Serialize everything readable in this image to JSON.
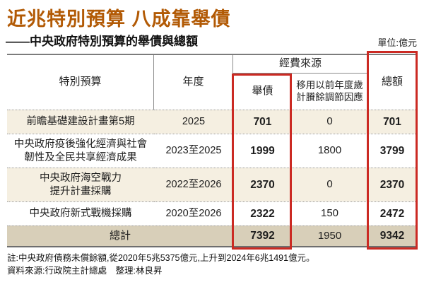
{
  "header": {
    "title": "近兆特別預算  八成靠舉債",
    "subtitle": "——中央政府特別預算的舉債與總額",
    "unit": "單位:億元"
  },
  "table": {
    "col_headers": {
      "budget": "特別預算",
      "year": "年度",
      "source_group": "經費來源",
      "debt": "舉債",
      "transfer": "移用以前年度歲\n計賸餘調節因應",
      "total": "總額"
    },
    "rows": [
      {
        "name": "前瞻基礎建設計畫第5期",
        "year": "2025",
        "debt": "701",
        "transfer": "0",
        "total": "701"
      },
      {
        "name": "中央政府疫後強化經濟與社會\n韌性及全民共享經濟成果",
        "year": "2023至2025",
        "debt": "1999",
        "transfer": "1800",
        "total": "3799"
      },
      {
        "name": "中央政府海空戰力\n提升計畫採購",
        "year": "2022至2026",
        "debt": "2370",
        "transfer": "0",
        "total": "2370"
      },
      {
        "name": "中央政府新式戰機採購",
        "year": "2020至2026",
        "debt": "2322",
        "transfer": "150",
        "total": "2472"
      }
    ],
    "total_row": {
      "label": "總計",
      "debt": "7392",
      "transfer": "1950",
      "total": "9342"
    }
  },
  "notes": {
    "line1": "註:中央政府債務未償餘額,從2020年5兆5375億元,上升到2024年6兆1491億元。",
    "line2": "資料來源:行政院主計總處　整理:林良昇"
  },
  "colors": {
    "title_orange": "#b25a05",
    "highlight_red": "#cb2a23",
    "row_beige": "#f5efe1",
    "total_tan": "#d8cfb9"
  },
  "chart_data": {
    "type": "table",
    "title": "近兆特別預算 八成靠舉債",
    "subtitle": "中央政府特別預算的舉債與總額",
    "unit": "億元",
    "columns": [
      "特別預算",
      "年度",
      "舉債",
      "移用以前年度歲計賸餘調節因應",
      "總額"
    ],
    "rows": [
      [
        "前瞻基礎建設計畫第5期",
        "2025",
        701,
        0,
        701
      ],
      [
        "中央政府疫後強化經濟與社會韌性及全民共享經濟成果",
        "2023至2025",
        1999,
        1800,
        3799
      ],
      [
        "中央政府海空戰力提升計畫採購",
        "2022至2026",
        2370,
        0,
        2370
      ],
      [
        "中央政府新式戰機採購",
        "2020至2026",
        2322,
        150,
        2472
      ],
      [
        "總計",
        "",
        7392,
        1950,
        9342
      ]
    ],
    "highlighted_columns": [
      "舉債",
      "總額"
    ],
    "note": "中央政府債務未償餘額,從2020年5兆5375億元,上升到2024年6兆1491億元",
    "source": "行政院主計總處"
  }
}
